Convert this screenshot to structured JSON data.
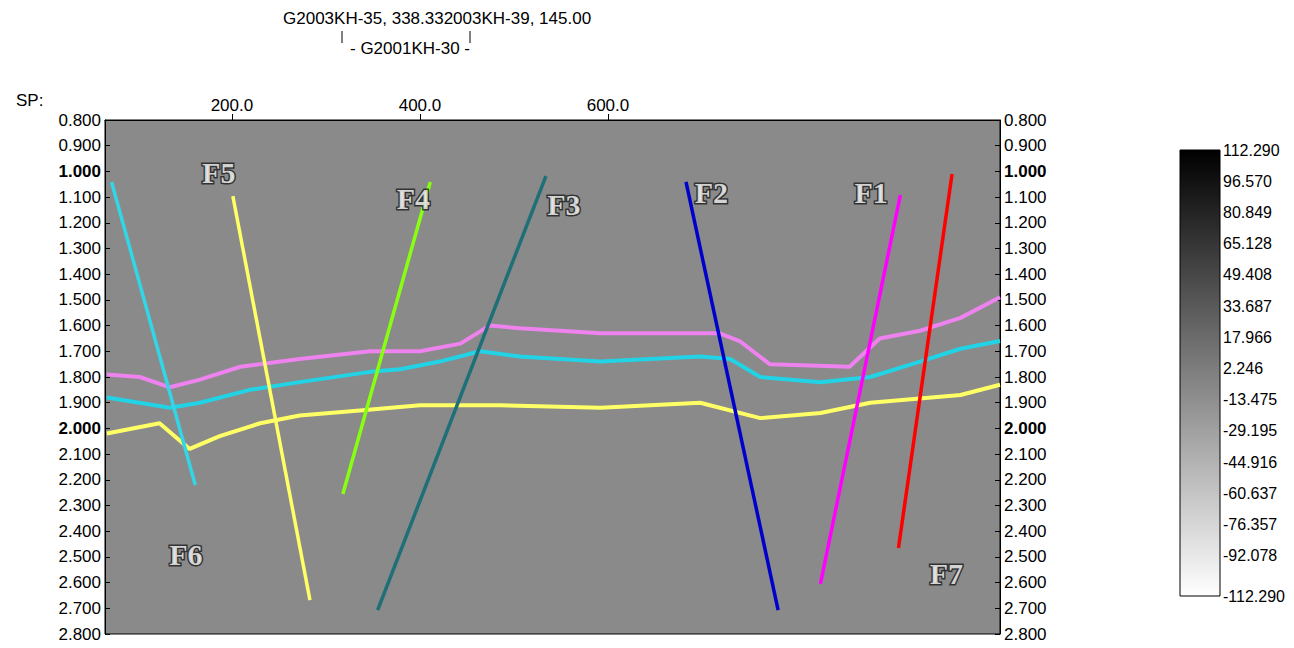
{
  "chart_data": {
    "type": "line",
    "title": "G2003KH-35, 338.332003KH-39, 145.00",
    "subtitle": "- G2001KH-30 -",
    "x_label": "SP:",
    "xlim": [
      65,
      1017
    ],
    "xticks": [
      {
        "value": 200,
        "label": "200.0"
      },
      {
        "value": 400,
        "label": "400.0"
      },
      {
        "value": 600,
        "label": "600.0"
      }
    ],
    "ylim": [
      0.8,
      2.8
    ],
    "yticks": [
      {
        "value": 0.8,
        "label": "0.800"
      },
      {
        "value": 0.9,
        "label": "0.900"
      },
      {
        "value": 1.0,
        "label": "1.000"
      },
      {
        "value": 1.1,
        "label": "1.100"
      },
      {
        "value": 1.2,
        "label": "1.200"
      },
      {
        "value": 1.3,
        "label": "1.300"
      },
      {
        "value": 1.4,
        "label": "1.400"
      },
      {
        "value": 1.5,
        "label": "1.500"
      },
      {
        "value": 1.6,
        "label": "1.600"
      },
      {
        "value": 1.7,
        "label": "1.700"
      },
      {
        "value": 1.8,
        "label": "1.800"
      },
      {
        "value": 1.9,
        "label": "1.900"
      },
      {
        "value": 2.0,
        "label": "2.000"
      },
      {
        "value": 2.1,
        "label": "2.100"
      },
      {
        "value": 2.2,
        "label": "2.200"
      },
      {
        "value": 2.3,
        "label": "2.300"
      },
      {
        "value": 2.4,
        "label": "2.400"
      },
      {
        "value": 2.5,
        "label": "2.500"
      },
      {
        "value": 2.6,
        "label": "2.600"
      },
      {
        "value": 2.7,
        "label": "2.700"
      },
      {
        "value": 2.8,
        "label": "2.800"
      }
    ],
    "grid": false,
    "series": [
      {
        "color": "#ee82ee",
        "x": [
          67,
          102,
          134,
          166,
          209,
          272,
          347,
          400,
          443,
          474,
          506,
          592,
          719,
          740,
          772,
          857,
          889,
          932,
          975,
          1017
        ],
        "values": [
          1.79,
          1.8,
          1.84,
          1.81,
          1.76,
          1.73,
          1.7,
          1.7,
          1.67,
          1.6,
          1.61,
          1.63,
          1.63,
          1.66,
          1.75,
          1.76,
          1.65,
          1.62,
          1.57,
          1.49
        ]
      },
      {
        "color": "#22d3e6",
        "x": [
          67,
          134,
          166,
          219,
          272,
          347,
          379,
          421,
          464,
          506,
          592,
          698,
          730,
          762,
          826,
          879,
          932,
          975,
          1017
        ],
        "values": [
          1.88,
          1.92,
          1.9,
          1.85,
          1.82,
          1.78,
          1.77,
          1.74,
          1.7,
          1.72,
          1.74,
          1.72,
          1.73,
          1.8,
          1.82,
          1.8,
          1.74,
          1.69,
          1.66
        ]
      },
      {
        "color": "#ffff66",
        "x": [
          67,
          123,
          155,
          187,
          230,
          272,
          336,
          400,
          485,
          592,
          698,
          762,
          826,
          879,
          975,
          1017
        ],
        "values": [
          2.02,
          1.98,
          2.08,
          2.03,
          1.98,
          1.95,
          1.93,
          1.91,
          1.91,
          1.92,
          1.9,
          1.96,
          1.94,
          1.9,
          1.87,
          1.83
        ]
      },
      {
        "name": "F6",
        "color": "#33d6e6",
        "x": [
          72,
          161
        ],
        "values": [
          1.041,
          2.22
        ],
        "label_at": [
          151,
          2.49
        ]
      },
      {
        "name": "F5",
        "color": "#ffff66",
        "x": [
          201,
          283
        ],
        "values": [
          1.096,
          2.668
        ],
        "label_at": [
          186,
          1.005
        ]
      },
      {
        "name": "F4",
        "color": "#88ff11",
        "x": [
          411,
          318
        ],
        "values": [
          1.041,
          2.255
        ],
        "label_at": [
          393,
          1.104
        ]
      },
      {
        "name": "F3",
        "color": "#1f6f78",
        "x": [
          534,
          355
        ],
        "values": [
          1.018,
          2.707
        ],
        "label_at": [
          553,
          1.128
        ]
      },
      {
        "name": "F2",
        "color": "#0000cc",
        "x": [
          683,
          781
        ],
        "values": [
          1.041,
          2.707
        ],
        "label_at": [
          710,
          1.081
        ]
      },
      {
        "name": "F1",
        "color": "#ff00ff",
        "x": [
          911,
          826
        ],
        "values": [
          1.092,
          2.605
        ],
        "label_at": [
          880,
          1.081
        ]
      },
      {
        "name": "F7",
        "color": "#ff0000",
        "x": [
          966,
          909
        ],
        "values": [
          1.01,
          2.465
        ],
        "label_at": [
          960,
          2.565
        ]
      }
    ],
    "colorbar": {
      "range": [
        -112.29,
        112.29
      ],
      "colors": [
        "#000000",
        "#ffffff"
      ],
      "ticks": [
        {
          "value": 112.29,
          "label": "112.290"
        },
        {
          "value": 96.57,
          "label": "96.570"
        },
        {
          "value": 80.849,
          "label": "80.849"
        },
        {
          "value": 65.128,
          "label": "65.128"
        },
        {
          "value": 49.408,
          "label": "49.408"
        },
        {
          "value": 33.687,
          "label": "33.687"
        },
        {
          "value": 17.966,
          "label": "17.966"
        },
        {
          "value": 2.246,
          "label": "2.246"
        },
        {
          "value": -13.475,
          "label": "-13.475"
        },
        {
          "value": -29.195,
          "label": "-29.195"
        },
        {
          "value": -44.916,
          "label": "-44.916"
        },
        {
          "value": -60.637,
          "label": "-60.637"
        },
        {
          "value": -76.357,
          "label": "-76.357"
        },
        {
          "value": -92.078,
          "label": "-92.078"
        },
        {
          "value": -112.29,
          "label": "-112.290"
        }
      ]
    }
  }
}
